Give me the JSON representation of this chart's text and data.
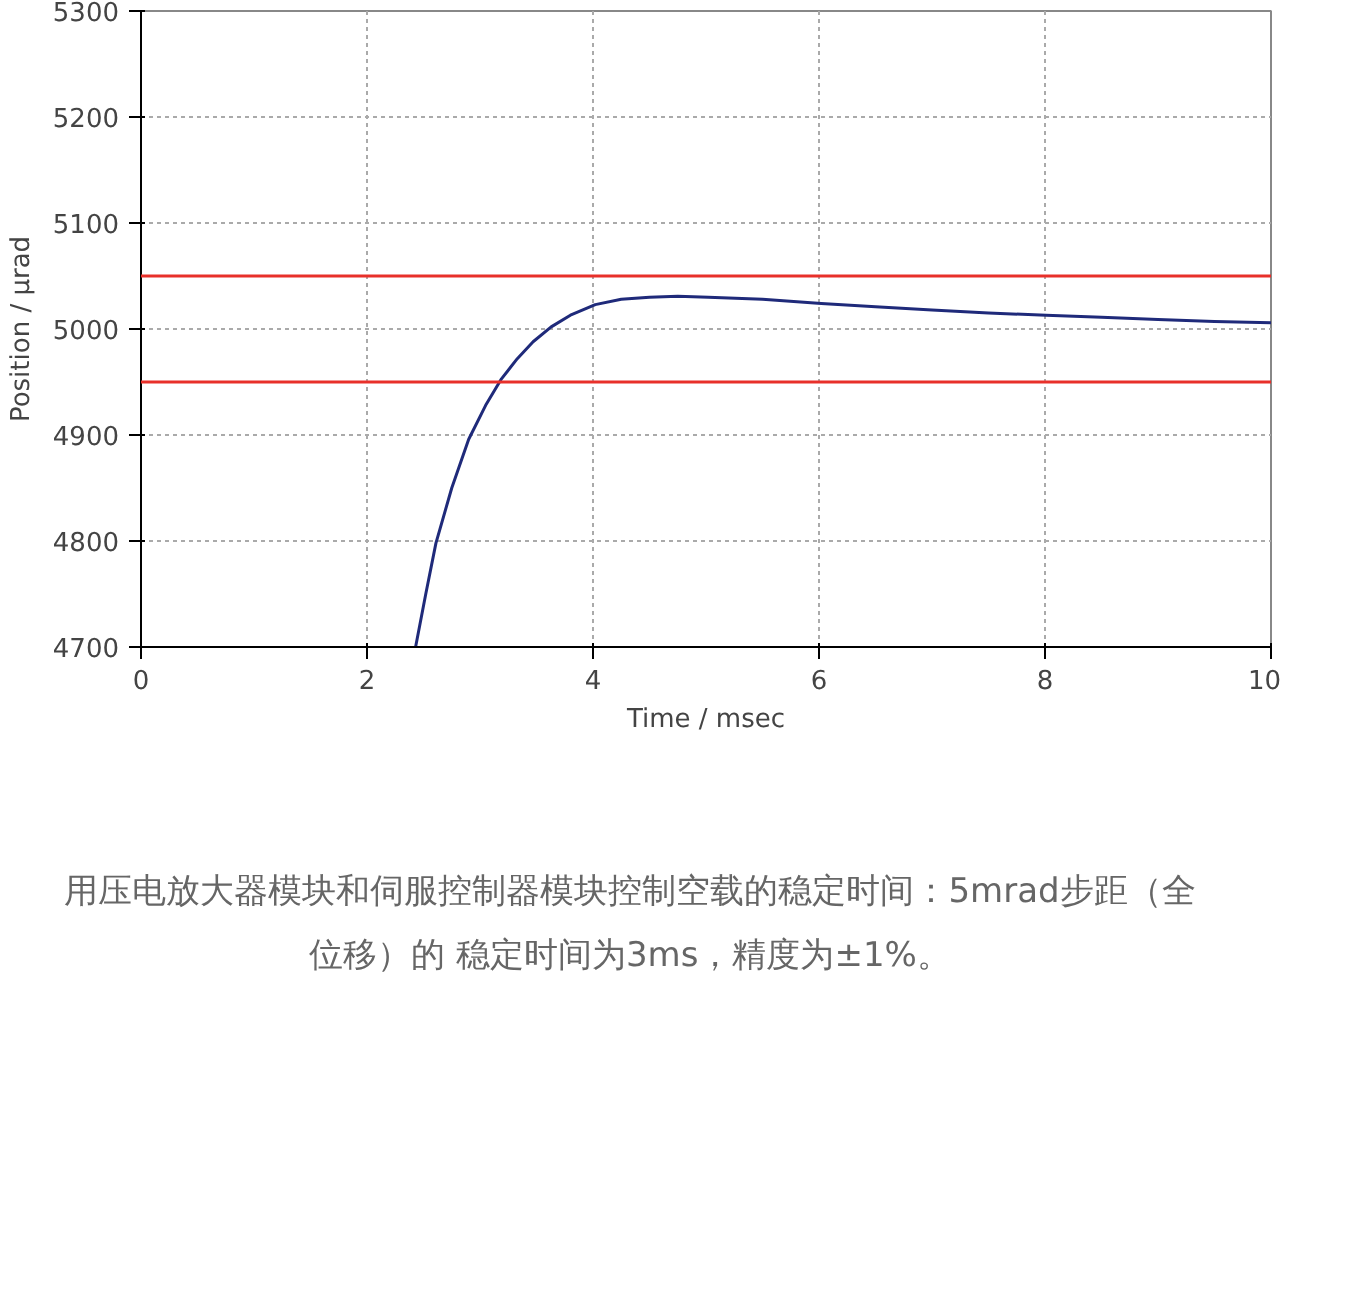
{
  "chart_data": {
    "type": "line",
    "xlabel": "Time / msec",
    "ylabel": "Position / µrad",
    "x": [
      2.43,
      2.52,
      2.61,
      2.75,
      2.9,
      3.05,
      3.19,
      3.33,
      3.47,
      3.63,
      3.8,
      4.02,
      4.25,
      4.5,
      4.75,
      5.02,
      5.5,
      6.02,
      6.5,
      7.0,
      7.5,
      8.01,
      8.5,
      9.0,
      9.5,
      10.0
    ],
    "series": [
      {
        "color": "#1f2a7a",
        "values": [
          4700,
          4750,
          4798,
          4850,
          4896,
          4928,
          4953,
          4972,
          4988,
          5002,
          5013,
          5023,
          5028,
          5030,
          5031,
          5030,
          5028,
          5024,
          5021,
          5018,
          5015,
          5013,
          5011,
          5009,
          5007,
          5006
        ]
      }
    ],
    "xlim": [
      0,
      10
    ],
    "xticks": [
      0,
      2,
      4,
      6,
      8,
      10
    ],
    "ylim": [
      4700,
      5300
    ],
    "yticks": [
      4700,
      4800,
      4900,
      5000,
      5100,
      5200,
      5300
    ],
    "grid": true,
    "marker": "none",
    "line_style": "solid",
    "ref_lines": [
      {
        "axis": "y",
        "value": 5050,
        "color": "#e8302a"
      },
      {
        "axis": "y",
        "value": 4950,
        "color": "#e8302a"
      }
    ],
    "annotations": [
      "用压电放大器模块和伺服控制器模块控制空载的稳定时间：5mrad步距（全位移）的 稳定时间为3ms，精度为±1%。"
    ]
  }
}
